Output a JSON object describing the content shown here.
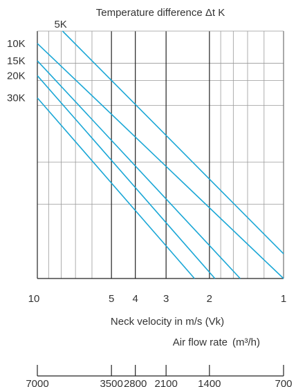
{
  "chart_data": {
    "type": "line",
    "title": "Temperature difference Δt K",
    "xlabel": "Neck velocity in m/s (Vk)",
    "x_scale": "log-reversed",
    "xlim": [
      10,
      1
    ],
    "velocity_ticks": [
      {
        "label": "10",
        "value": 10
      },
      {
        "label": "5",
        "value": 5
      },
      {
        "label": "4",
        "value": 4
      },
      {
        "label": "3",
        "value": 3
      },
      {
        "label": "2",
        "value": 2
      },
      {
        "label": "1",
        "value": 1
      }
    ],
    "airflow_label": "Air flow rate",
    "airflow_unit": "(m³/h)",
    "airflow_ticks": [
      {
        "label": "7000",
        "velocity": 10
      },
      {
        "label": "3500",
        "velocity": 5
      },
      {
        "label": "2800",
        "velocity": 4
      },
      {
        "label": "2100",
        "velocity": 3
      },
      {
        "label": "1400",
        "velocity": 2
      },
      {
        "label": "700",
        "velocity": 1
      }
    ],
    "grid": true,
    "line_color": "#1aa7d6",
    "series": [
      {
        "name": "5K",
        "label_position": "top",
        "start": {
          "x": 7.9,
          "level": 1.0
        },
        "end": {
          "x": 1.0,
          "level": 0.1
        }
      },
      {
        "name": "10K",
        "label_position": "left",
        "start": {
          "x": 10,
          "level": 0.95
        },
        "end": {
          "x": 1.0,
          "level": 0.0
        }
      },
      {
        "name": "15K",
        "label_position": "left",
        "start": {
          "x": 10,
          "level": 0.88
        },
        "end": {
          "x": 1.5,
          "level": 0.0
        }
      },
      {
        "name": "20K",
        "label_position": "left",
        "start": {
          "x": 10,
          "level": 0.82
        },
        "end": {
          "x": 1.9,
          "level": 0.0
        }
      },
      {
        "name": "30K",
        "label_position": "left",
        "start": {
          "x": 10,
          "level": 0.73
        },
        "end": {
          "x": 2.3,
          "level": 0.0
        }
      }
    ]
  }
}
